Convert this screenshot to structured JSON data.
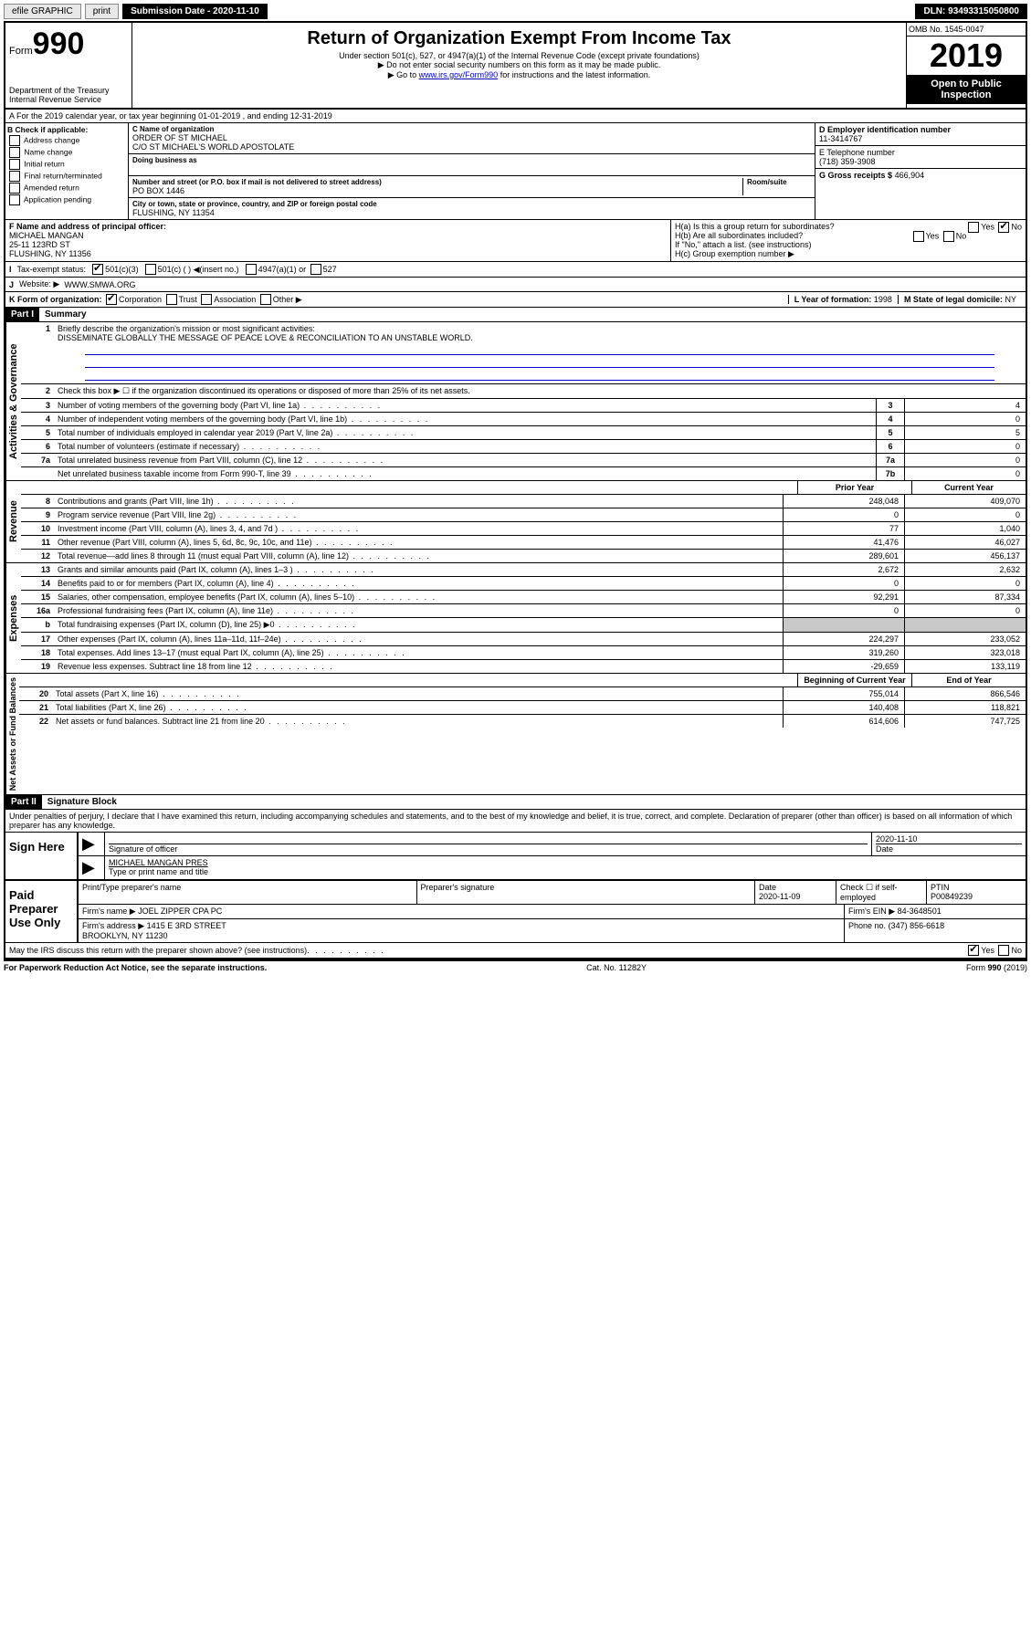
{
  "topbar": {
    "efile": "efile GRAPHIC",
    "print": "print",
    "submission_label": "Submission Date - 2020-11-10",
    "dln": "DLN: 93493315050800"
  },
  "header": {
    "form_word": "Form",
    "form_num": "990",
    "dept": "Department of the Treasury\nInternal Revenue Service",
    "title": "Return of Organization Exempt From Income Tax",
    "sub1": "Under section 501(c), 527, or 4947(a)(1) of the Internal Revenue Code (except private foundations)",
    "sub2": "▶ Do not enter social security numbers on this form as it may be made public.",
    "sub3_pre": "▶ Go to ",
    "sub3_link": "www.irs.gov/Form990",
    "sub3_post": " for instructions and the latest information.",
    "omb": "OMB No. 1545-0047",
    "year": "2019",
    "open": "Open to Public Inspection"
  },
  "rowA": "A For the 2019 calendar year, or tax year beginning 01-01-2019    , and ending 12-31-2019",
  "boxB": {
    "label": "B Check if applicable:",
    "opts": [
      "Address change",
      "Name change",
      "Initial return",
      "Final return/terminated",
      "Amended return",
      "Application pending"
    ]
  },
  "boxC": {
    "name_lbl": "C Name of organization",
    "name": "ORDER OF ST MICHAEL",
    "care_of": "C/O ST MICHAEL'S WORLD APOSTOLATE",
    "dba_lbl": "Doing business as",
    "addr_lbl": "Number and street (or P.O. box if mail is not delivered to street address)",
    "room_lbl": "Room/suite",
    "addr": "PO BOX 1446",
    "city_lbl": "City or town, state or province, country, and ZIP or foreign postal code",
    "city": "FLUSHING, NY  11354"
  },
  "boxD": {
    "lbl": "D Employer identification number",
    "val": "11-3414767"
  },
  "boxE": {
    "lbl": "E Telephone number",
    "val": "(718) 359-3908"
  },
  "boxG": {
    "lbl": "G Gross receipts $",
    "val": "466,904"
  },
  "boxF": {
    "lbl": "F  Name and address of principal officer:",
    "name": "MICHAEL MANGAN",
    "addr1": "25-11 123RD ST",
    "addr2": "FLUSHING, NY  11356"
  },
  "boxH": {
    "a": "H(a)  Is this a group return for subordinates?",
    "b": "H(b)  Are all subordinates included?",
    "b_note": "If \"No,\" attach a list. (see instructions)",
    "c": "H(c)  Group exemption number ▶",
    "yes": "Yes",
    "no": "No"
  },
  "rowI": {
    "lbl": "Tax-exempt status:",
    "o1": "501(c)(3)",
    "o2": "501(c) (  ) ◀(insert no.)",
    "o3": "4947(a)(1) or",
    "o4": "527"
  },
  "rowJ": {
    "lbl": "Website: ▶",
    "val": "WWW.SMWA.ORG"
  },
  "rowK": {
    "lbl": "K Form of organization:",
    "opts": [
      "Corporation",
      "Trust",
      "Association",
      "Other ▶"
    ],
    "L_lbl": "L Year of formation:",
    "L_val": "1998",
    "M_lbl": "M State of legal domicile:",
    "M_val": "NY"
  },
  "part1": {
    "hdr": "Part I",
    "title": "Summary"
  },
  "summary": {
    "l1_lbl": "Briefly describe the organization's mission or most significant activities:",
    "l1_val": "DISSEMINATE GLOBALLY THE MESSAGE OF PEACE LOVE & RECONCILIATION TO AN UNSTABLE WORLD.",
    "l2": "Check this box ▶ ☐  if the organization discontinued its operations or disposed of more than 25% of its net assets.",
    "rows_a": [
      {
        "n": "3",
        "t": "Number of voting members of the governing body (Part VI, line 1a)",
        "b": "3",
        "v": "4"
      },
      {
        "n": "4",
        "t": "Number of independent voting members of the governing body (Part VI, line 1b)",
        "b": "4",
        "v": "0"
      },
      {
        "n": "5",
        "t": "Total number of individuals employed in calendar year 2019 (Part V, line 2a)",
        "b": "5",
        "v": "5"
      },
      {
        "n": "6",
        "t": "Total number of volunteers (estimate if necessary)",
        "b": "6",
        "v": "0"
      },
      {
        "n": "7a",
        "t": "Total unrelated business revenue from Part VIII, column (C), line 12",
        "b": "7a",
        "v": "0"
      },
      {
        "n": "",
        "t": "Net unrelated business taxable income from Form 990-T, line 39",
        "b": "7b",
        "v": "0"
      }
    ],
    "col_prior": "Prior Year",
    "col_current": "Current Year",
    "rev": [
      {
        "n": "8",
        "t": "Contributions and grants (Part VIII, line 1h)",
        "p": "248,048",
        "c": "409,070"
      },
      {
        "n": "9",
        "t": "Program service revenue (Part VIII, line 2g)",
        "p": "0",
        "c": "0"
      },
      {
        "n": "10",
        "t": "Investment income (Part VIII, column (A), lines 3, 4, and 7d )",
        "p": "77",
        "c": "1,040"
      },
      {
        "n": "11",
        "t": "Other revenue (Part VIII, column (A), lines 5, 6d, 8c, 9c, 10c, and 11e)",
        "p": "41,476",
        "c": "46,027"
      },
      {
        "n": "12",
        "t": "Total revenue—add lines 8 through 11 (must equal Part VIII, column (A), line 12)",
        "p": "289,601",
        "c": "456,137"
      }
    ],
    "exp": [
      {
        "n": "13",
        "t": "Grants and similar amounts paid (Part IX, column (A), lines 1–3 )",
        "p": "2,672",
        "c": "2,632"
      },
      {
        "n": "14",
        "t": "Benefits paid to or for members (Part IX, column (A), line 4)",
        "p": "0",
        "c": "0"
      },
      {
        "n": "15",
        "t": "Salaries, other compensation, employee benefits (Part IX, column (A), lines 5–10)",
        "p": "92,291",
        "c": "87,334"
      },
      {
        "n": "16a",
        "t": "Professional fundraising fees (Part IX, column (A), line 11e)",
        "p": "0",
        "c": "0"
      },
      {
        "n": "b",
        "t": "Total fundraising expenses (Part IX, column (D), line 25) ▶0",
        "p": "",
        "c": "",
        "grey": true
      },
      {
        "n": "17",
        "t": "Other expenses (Part IX, column (A), lines 11a–11d, 11f–24e)",
        "p": "224,297",
        "c": "233,052"
      },
      {
        "n": "18",
        "t": "Total expenses. Add lines 13–17 (must equal Part IX, column (A), line 25)",
        "p": "319,260",
        "c": "323,018"
      },
      {
        "n": "19",
        "t": "Revenue less expenses. Subtract line 18 from line 12",
        "p": "-29,659",
        "c": "133,119"
      }
    ],
    "col_begin": "Beginning of Current Year",
    "col_end": "End of Year",
    "net": [
      {
        "n": "20",
        "t": "Total assets (Part X, line 16)",
        "p": "755,014",
        "c": "866,546"
      },
      {
        "n": "21",
        "t": "Total liabilities (Part X, line 26)",
        "p": "140,408",
        "c": "118,821"
      },
      {
        "n": "22",
        "t": "Net assets or fund balances. Subtract line 21 from line 20",
        "p": "614,606",
        "c": "747,725"
      }
    ]
  },
  "vlabels": {
    "gov": "Activities & Governance",
    "rev": "Revenue",
    "exp": "Expenses",
    "net": "Net Assets or Fund Balances"
  },
  "part2": {
    "hdr": "Part II",
    "title": "Signature Block"
  },
  "perjury": "Under penalties of perjury, I declare that I have examined this return, including accompanying schedules and statements, and to the best of my knowledge and belief, it is true, correct, and complete. Declaration of preparer (other than officer) is based on all information of which preparer has any knowledge.",
  "sign": {
    "here": "Sign Here",
    "sig_lbl": "Signature of officer",
    "date": "2020-11-10",
    "date_lbl": "Date",
    "name": "MICHAEL MANGAN  PRES",
    "name_lbl": "Type or print name and title"
  },
  "paid": {
    "lbl": "Paid Preparer Use Only",
    "h_name": "Print/Type preparer's name",
    "h_sig": "Preparer's signature",
    "h_date": "Date",
    "date": "2020-11-09",
    "check_lbl": "Check ☐ if self-employed",
    "ptin_lbl": "PTIN",
    "ptin": "P00849239",
    "firm_name_lbl": "Firm's name    ▶",
    "firm_name": "JOEL ZIPPER CPA PC",
    "firm_ein_lbl": "Firm's EIN ▶",
    "firm_ein": "84-3648501",
    "firm_addr_lbl": "Firm's address ▶",
    "firm_addr": "1415 E 3RD STREET\nBROOKLYN, NY  11230",
    "phone_lbl": "Phone no.",
    "phone": "(347) 856-6618"
  },
  "discuss": "May the IRS discuss this return with the preparer shown above? (see instructions)",
  "foot": {
    "pra": "For Paperwork Reduction Act Notice, see the separate instructions.",
    "cat": "Cat. No. 11282Y",
    "form": "Form 990 (2019)"
  },
  "colors": {
    "link": "#0000cc",
    "grey": "#c8c8c8"
  }
}
